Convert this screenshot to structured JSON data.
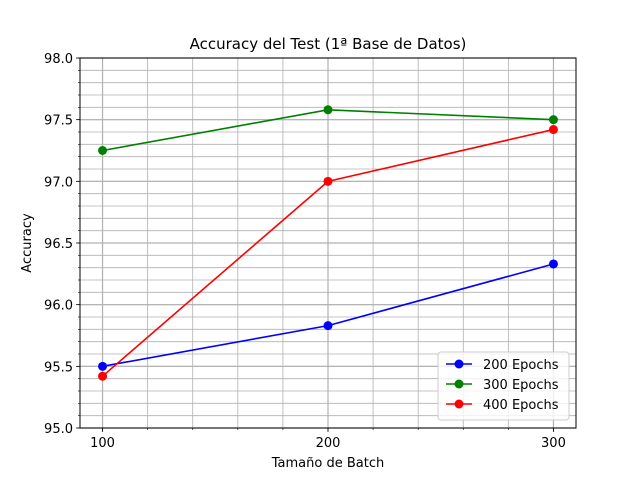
{
  "chart_data": {
    "type": "line",
    "title": "Accuracy del Test (1ª Base de Datos)",
    "xlabel": "Tamaño de Batch",
    "ylabel": "Accuracy",
    "x": [
      100,
      200,
      300
    ],
    "xlim": [
      90,
      310
    ],
    "ylim": [
      95.0,
      98.0
    ],
    "xticks": [
      100,
      200,
      300
    ],
    "yticks": [
      95.0,
      95.5,
      96.0,
      96.5,
      97.0,
      97.5,
      98.0
    ],
    "xtick_labels": [
      "100",
      "200",
      "300"
    ],
    "ytick_labels": [
      "95.0",
      "95.5",
      "96.0",
      "96.5",
      "97.0",
      "97.5",
      "98.0"
    ],
    "grid": true,
    "grid_minor": true,
    "legend_position": "lower-right",
    "series": [
      {
        "name": "200 Epochs",
        "color": "#0000ff",
        "values": [
          95.5,
          95.83,
          96.33
        ]
      },
      {
        "name": "300 Epochs",
        "color": "#008000",
        "values": [
          97.25,
          97.58,
          97.5
        ]
      },
      {
        "name": "400 Epochs",
        "color": "#ff0000",
        "values": [
          95.42,
          97.0,
          97.42
        ]
      }
    ]
  }
}
